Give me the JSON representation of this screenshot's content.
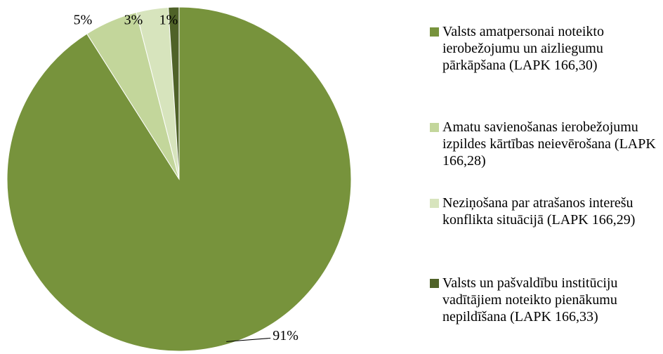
{
  "chart_data": {
    "type": "pie",
    "categories": [
      "Valsts amatpersonai noteikto ierobežojumu un aizliegumu pārkāpšana (LAPK 166,30)",
      "Amatu savienošanas ierobežojumu izpildes kārtības neievērošana (LAPK 166,28)",
      "Neziņošana par atrašanos interešu konflikta situācijā (LAPK 166,29)",
      "Valsts un pašvaldību institūciju vadītājiem noteikto pienākumu nepildīšana (LAPK 166,33)"
    ],
    "values": [
      91,
      5,
      3,
      1
    ],
    "value_labels": [
      "91%",
      "5%",
      "3%",
      "1%"
    ],
    "colors": [
      "#77933c",
      "#c3d69b",
      "#d7e4bd",
      "#4f6228"
    ],
    "legend": "right"
  }
}
